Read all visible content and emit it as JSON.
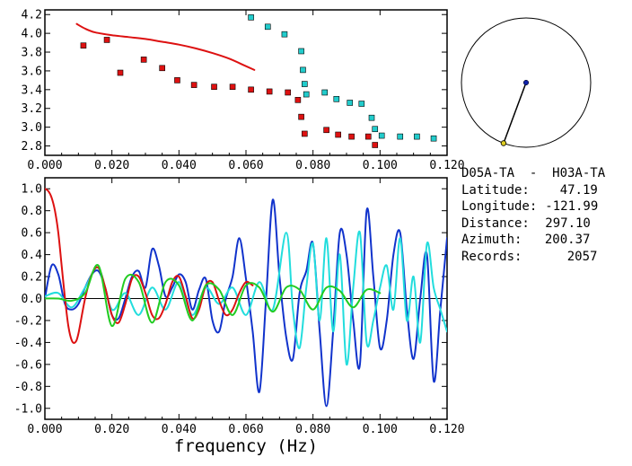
{
  "chart_data": [
    {
      "type": "scatter",
      "xlim": [
        0.0,
        0.12
      ],
      "ylim": [
        2.7,
        4.25
      ],
      "x_ticks": [
        "0.000",
        "0.020",
        "0.040",
        "0.060",
        "0.080",
        "0.100",
        "0.120"
      ],
      "y_ticks": [
        "2.8",
        "3.0",
        "3.2",
        "3.4",
        "3.6",
        "3.8",
        "4.0",
        "4.2"
      ],
      "grid": false,
      "series": [
        {
          "kind": "markers",
          "color": "#dd1111",
          "x": [
            0.0115,
            0.0185,
            0.0225,
            0.0295,
            0.035,
            0.0395,
            0.0445,
            0.0505,
            0.056,
            0.0615,
            0.067,
            0.0725,
            0.0755,
            0.0765,
            0.0775,
            0.084,
            0.0875,
            0.0915,
            0.0965,
            0.0985
          ],
          "y": [
            3.87,
            3.93,
            3.58,
            3.72,
            3.63,
            3.5,
            3.45,
            3.43,
            3.43,
            3.4,
            3.38,
            3.37,
            3.29,
            3.11,
            2.93,
            2.97,
            2.92,
            2.9,
            2.9,
            2.81
          ]
        },
        {
          "kind": "markers",
          "color": "#22cccc",
          "x": [
            0.0615,
            0.0665,
            0.0715,
            0.0765,
            0.077,
            0.0775,
            0.078,
            0.0835,
            0.087,
            0.091,
            0.0945,
            0.0975,
            0.0985,
            0.1005,
            0.106,
            0.111,
            0.116
          ],
          "y": [
            4.17,
            4.07,
            3.99,
            3.81,
            3.61,
            3.46,
            3.35,
            3.37,
            3.3,
            3.26,
            3.25,
            3.1,
            2.98,
            2.91,
            2.9,
            2.9,
            2.88
          ]
        },
        {
          "kind": "line",
          "color": "#dd1111",
          "x": [
            0.0095,
            0.012,
            0.015,
            0.02,
            0.025,
            0.03,
            0.035,
            0.04,
            0.045,
            0.05,
            0.055,
            0.06,
            0.0625
          ],
          "y": [
            4.1,
            4.05,
            4.01,
            3.98,
            3.96,
            3.94,
            3.91,
            3.88,
            3.84,
            3.79,
            3.73,
            3.65,
            3.61
          ]
        }
      ]
    },
    {
      "type": "line",
      "xlabel": "frequency (Hz)",
      "xlim": [
        0.0,
        0.12
      ],
      "ylim": [
        -1.1,
        1.1
      ],
      "x_ticks": [
        "0.000",
        "0.020",
        "0.040",
        "0.060",
        "0.080",
        "0.100",
        "0.120"
      ],
      "y_ticks": [
        "1.0",
        "0.8",
        "0.6",
        "0.4",
        "0.2",
        "0.0",
        "-0.2",
        "-0.4",
        "-0.6",
        "-0.8",
        "-1.0"
      ],
      "zero_line": true,
      "grid": false,
      "series": [
        {
          "color": "#1133cc",
          "x": [
            0.0,
            0.002,
            0.004,
            0.006,
            0.008,
            0.01,
            0.012,
            0.014,
            0.016,
            0.018,
            0.02,
            0.022,
            0.024,
            0.026,
            0.028,
            0.03,
            0.032,
            0.034,
            0.036,
            0.038,
            0.04,
            0.042,
            0.044,
            0.046,
            0.048,
            0.05,
            0.052,
            0.054,
            0.056,
            0.058,
            0.06,
            0.062,
            0.064,
            0.066,
            0.068,
            0.07,
            0.072,
            0.074,
            0.076,
            0.078,
            0.08,
            0.082,
            0.084,
            0.086,
            0.088,
            0.09,
            0.092,
            0.094,
            0.096,
            0.098,
            0.1,
            0.102,
            0.104,
            0.106,
            0.108,
            0.11,
            0.112,
            0.114,
            0.116,
            0.118,
            0.12
          ],
          "y": [
            0.0,
            0.3,
            0.22,
            -0.05,
            -0.1,
            -0.05,
            0.1,
            0.22,
            0.25,
            0.1,
            -0.15,
            -0.18,
            0.0,
            0.2,
            0.25,
            0.1,
            0.45,
            0.3,
            0.02,
            0.1,
            0.22,
            0.15,
            -0.1,
            0.08,
            0.18,
            -0.2,
            -0.3,
            0.0,
            0.2,
            0.55,
            0.18,
            -0.3,
            -0.85,
            0.0,
            0.9,
            0.2,
            -0.35,
            -0.55,
            0.05,
            0.25,
            0.5,
            -0.3,
            -0.98,
            -0.3,
            0.6,
            0.4,
            -0.2,
            -0.6,
            0.8,
            0.2,
            -0.45,
            -0.2,
            0.4,
            0.6,
            -0.1,
            -0.55,
            0.0,
            0.4,
            -0.75,
            -0.1,
            0.55
          ]
        },
        {
          "color": "#22dddd",
          "x": [
            0.0,
            0.004,
            0.008,
            0.012,
            0.016,
            0.02,
            0.024,
            0.028,
            0.032,
            0.036,
            0.04,
            0.044,
            0.048,
            0.052,
            0.056,
            0.06,
            0.064,
            0.068,
            0.072,
            0.074,
            0.076,
            0.078,
            0.08,
            0.082,
            0.084,
            0.086,
            0.088,
            0.09,
            0.092,
            0.094,
            0.096,
            0.098,
            0.1,
            0.102,
            0.104,
            0.106,
            0.108,
            0.11,
            0.112,
            0.114,
            0.116,
            0.118,
            0.12
          ],
          "y": [
            0.02,
            0.05,
            -0.08,
            0.1,
            0.28,
            -0.1,
            0.05,
            -0.15,
            0.1,
            -0.1,
            0.15,
            -0.15,
            0.1,
            -0.05,
            0.1,
            -0.15,
            0.15,
            -0.1,
            0.6,
            -0.1,
            -0.45,
            0.1,
            0.5,
            -0.2,
            0.55,
            -0.3,
            0.4,
            -0.6,
            0.1,
            0.6,
            -0.4,
            -0.2,
            0.1,
            0.3,
            -0.1,
            0.55,
            -0.2,
            0.2,
            -0.4,
            0.5,
            0.1,
            -0.1,
            -0.3
          ]
        },
        {
          "color": "#dd1111",
          "x": [
            0.0,
            0.001,
            0.002,
            0.003,
            0.004,
            0.005,
            0.006,
            0.007,
            0.008,
            0.009,
            0.01,
            0.012,
            0.014,
            0.016,
            0.018,
            0.02,
            0.022,
            0.024,
            0.026,
            0.028,
            0.03,
            0.032,
            0.034,
            0.036,
            0.038,
            0.04,
            0.042,
            0.044,
            0.046,
            0.048,
            0.05,
            0.052,
            0.054,
            0.056,
            0.058,
            0.06,
            0.062
          ],
          "y": [
            1.0,
            0.98,
            0.92,
            0.8,
            0.6,
            0.3,
            0.0,
            -0.25,
            -0.38,
            -0.4,
            -0.32,
            0.0,
            0.22,
            0.28,
            0.1,
            -0.15,
            -0.22,
            -0.05,
            0.18,
            0.2,
            0.05,
            -0.15,
            -0.18,
            -0.05,
            0.15,
            0.2,
            0.02,
            -0.18,
            -0.1,
            0.12,
            0.15,
            -0.02,
            -0.15,
            -0.1,
            0.05,
            0.15,
            0.12
          ]
        },
        {
          "color": "#22cc22",
          "x": [
            0.0,
            0.004,
            0.008,
            0.012,
            0.016,
            0.02,
            0.024,
            0.028,
            0.032,
            0.036,
            0.04,
            0.044,
            0.048,
            0.052,
            0.056,
            0.06,
            0.064,
            0.068,
            0.072,
            0.076,
            0.08,
            0.084,
            0.088,
            0.092,
            0.096,
            0.1
          ],
          "y": [
            0.0,
            0.0,
            -0.02,
            0.05,
            0.3,
            -0.25,
            0.18,
            0.15,
            -0.22,
            0.15,
            0.12,
            -0.2,
            0.12,
            0.08,
            -0.15,
            0.12,
            0.1,
            -0.12,
            0.1,
            0.08,
            -0.1,
            0.1,
            0.07,
            -0.08,
            0.08,
            0.05
          ]
        }
      ]
    }
  ],
  "compass": {
    "azimuth": 200.37,
    "colors": {
      "circle": "#000000",
      "arm": "#000000",
      "center": "#1122aa",
      "end": "#ddcc22"
    }
  },
  "info": {
    "station_pair": "D05A-TA  -  H03A-TA",
    "rows": [
      {
        "label": "Latitude:",
        "value": "47.19"
      },
      {
        "label": "Longitude:",
        "value": "-121.99"
      },
      {
        "label": "Distance:",
        "value": "297.10"
      },
      {
        "label": "Azimuth:",
        "value": "200.37"
      },
      {
        "label": "Records:",
        "value": "2057"
      }
    ]
  }
}
